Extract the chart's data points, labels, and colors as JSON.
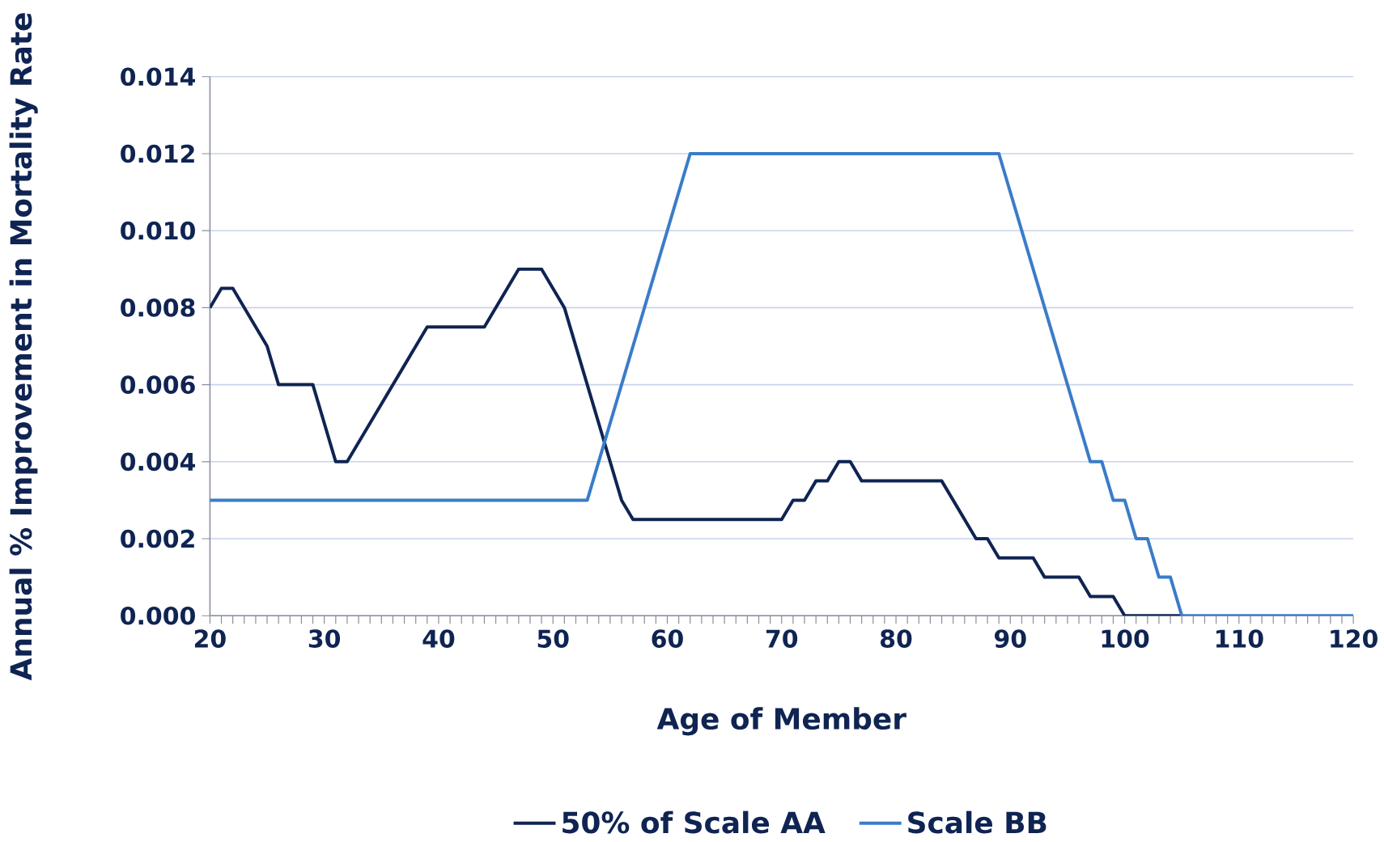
{
  "chart_data": {
    "type": "line",
    "xlabel": "Age of Member",
    "ylabel": "Annual % Improvement in Mortality Rate",
    "xlim": [
      20,
      120
    ],
    "xticks": [
      20,
      30,
      40,
      50,
      60,
      70,
      80,
      90,
      100,
      110,
      120
    ],
    "ylim": [
      0,
      0.014
    ],
    "yticks": [
      {
        "value": 0,
        "label": "0.000"
      },
      0.002,
      0.004,
      0.006,
      0.008,
      {
        "value": 0.01,
        "label": "0.010"
      },
      0.012,
      0.014
    ],
    "grid": "y",
    "legend": "bottom",
    "line_style": "solid",
    "series": [
      {
        "name": "50% of Scale AA",
        "color": "#0f2452",
        "x": [
          20,
          21,
          22,
          25,
          26,
          29,
          31,
          32,
          39,
          44,
          47,
          49,
          51,
          56,
          57,
          70,
          71,
          72,
          73,
          74,
          75,
          76,
          77,
          84,
          87,
          88,
          89,
          92,
          93,
          96,
          97,
          99,
          100,
          105
        ],
        "values": [
          0.008,
          0.0085,
          0.0085,
          0.007,
          0.006,
          0.006,
          0.004,
          0.004,
          0.0075,
          0.0075,
          0.009,
          0.009,
          0.008,
          0.003,
          0.0025,
          0.0025,
          0.003,
          0.003,
          0.0035,
          0.0035,
          0.004,
          0.004,
          0.0035,
          0.0035,
          0.002,
          0.002,
          0.0015,
          0.0015,
          0.001,
          0.001,
          0.0005,
          0.0005,
          0,
          0
        ]
      },
      {
        "name": "Scale BB",
        "color": "#3a7cc9",
        "x": [
          20,
          53,
          62,
          89,
          97,
          98,
          99,
          100,
          101,
          102,
          103,
          104,
          105,
          120
        ],
        "values": [
          0.003,
          0.003,
          0.012,
          0.012,
          0.004,
          0.004,
          0.003,
          0.003,
          0.002,
          0.002,
          0.001,
          0.001,
          0,
          0
        ]
      }
    ]
  }
}
